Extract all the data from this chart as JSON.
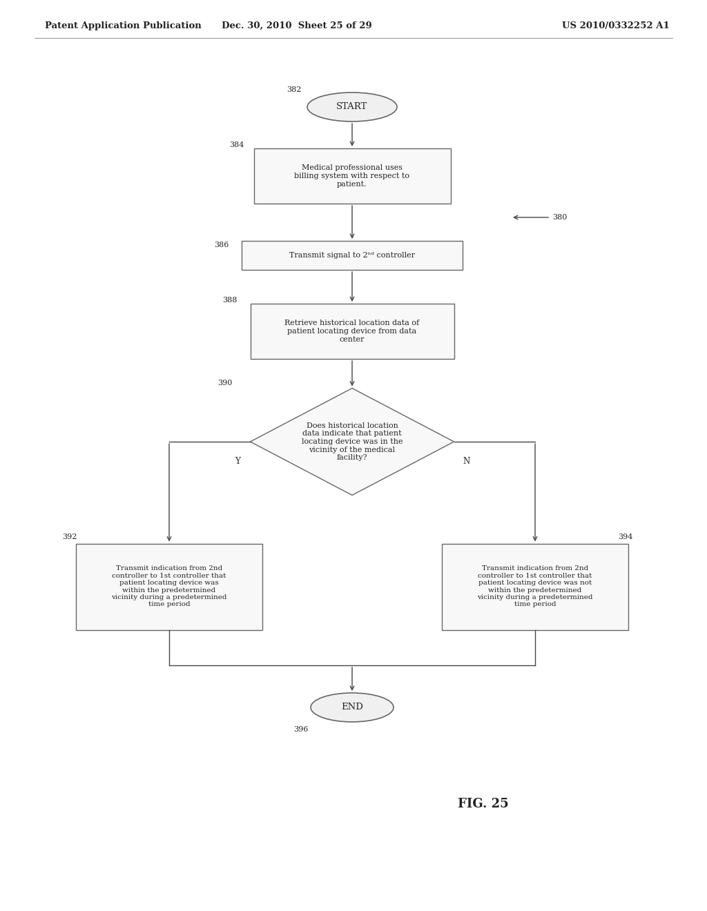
{
  "bg_color": "#ffffff",
  "header_left": "Patent Application Publication",
  "header_mid": "Dec. 30, 2010  Sheet 25 of 29",
  "header_right": "US 2010/0332252 A1",
  "fig_label": "FIG. 25",
  "arrow_color": "#444444",
  "text_color": "#222222",
  "box_edge_color": "#666666",
  "font_size_node": 8.0,
  "font_size_ref": 8.0,
  "font_size_header": 9.5,
  "font_size_fig": 13,
  "font_size_yn": 8.5
}
